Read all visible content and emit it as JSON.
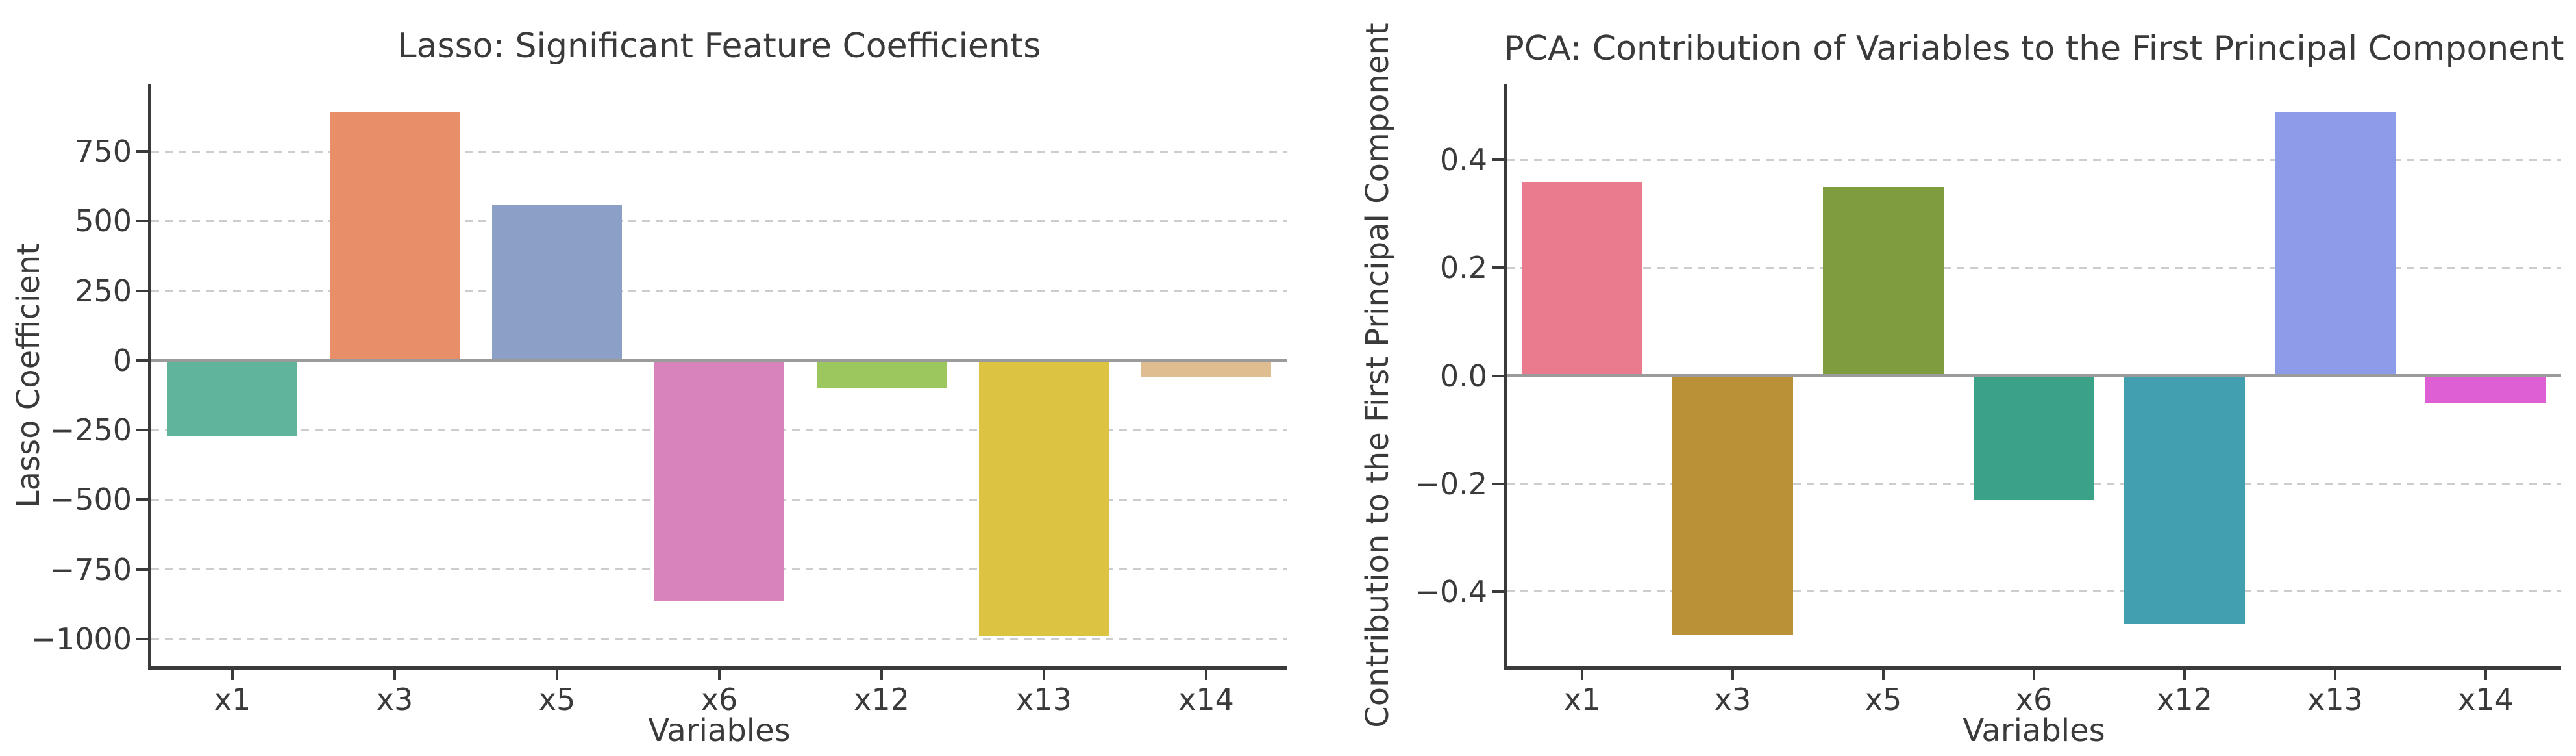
{
  "style": {
    "background": "#ffffff",
    "text_color": "#3a3a3a",
    "spine_color": "#3a3a3a",
    "grid_color": "#cdcdcd",
    "zero_line_color": "#9b9b9b"
  },
  "chart_data": [
    {
      "type": "bar",
      "title": "Lasso: Significant Feature Coefficients",
      "xlabel": "Variables",
      "ylabel": "Lasso Coefficient",
      "categories": [
        "x1",
        "x3",
        "x5",
        "x6",
        "x12",
        "x13",
        "x14"
      ],
      "values": [
        -270,
        890,
        560,
        -865,
        -100,
        -990,
        -60
      ],
      "bar_colors": [
        "#60b49c",
        "#e88e68",
        "#8c9fc6",
        "#d884ba",
        "#9cc75e",
        "#ddc342",
        "#dfbd90"
      ],
      "yticks": [
        750,
        500,
        250,
        0,
        -250,
        -500,
        -750,
        -1000
      ],
      "ytick_labels": [
        "750",
        "500",
        "250",
        "0",
        "−250",
        "−500",
        "−750",
        "−1000"
      ],
      "ylim": [
        -1100,
        990
      ],
      "grid": "horizontal-dashed",
      "legend": "none"
    },
    {
      "type": "bar",
      "title": "PCA: Contribution of Variables to the First Principal Component",
      "xlabel": "Variables",
      "ylabel": "Contribution to the First Principal Component",
      "categories": [
        "x1",
        "x3",
        "x5",
        "x6",
        "x12",
        "x13",
        "x14"
      ],
      "values": [
        0.36,
        -0.48,
        0.35,
        -0.23,
        -0.46,
        0.49,
        -0.05
      ],
      "bar_colors": [
        "#ea7a8e",
        "#bb9138",
        "#7f9d3f",
        "#3ba287",
        "#429fb0",
        "#8c9ce9",
        "#de5ed4"
      ],
      "yticks": [
        0.4,
        0.2,
        0.0,
        -0.2,
        -0.4
      ],
      "ytick_labels": [
        "0.4",
        "0.2",
        "0.0",
        "−0.2",
        "−0.4"
      ],
      "ylim": [
        -0.54,
        0.54
      ],
      "grid": "horizontal-dashed",
      "legend": "none"
    }
  ]
}
